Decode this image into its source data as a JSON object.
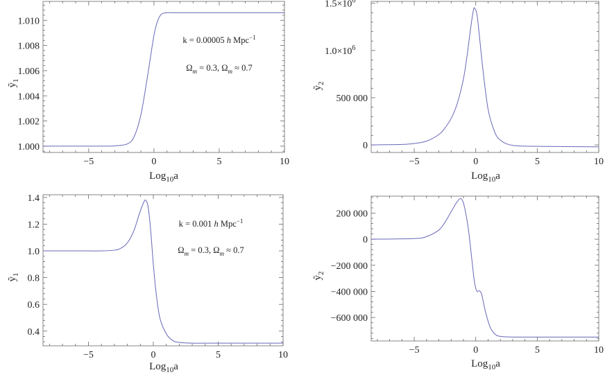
{
  "chart_data": [
    {
      "type": "line",
      "xlabel": "Log10a",
      "ylabel": "ỹ1",
      "xlim": [
        -8.5,
        10
      ],
      "ylim": [
        0.9995,
        1.0115
      ],
      "xticks": [
        -5,
        0,
        5,
        10
      ],
      "xtick_labels": [
        "−5",
        "0",
        "5",
        "10"
      ],
      "yticks": [
        1.0,
        1.002,
        1.004,
        1.006,
        1.008,
        1.01
      ],
      "ytick_labels": [
        "1.000",
        "1.002",
        "1.004",
        "1.006",
        "1.008",
        "1.010"
      ],
      "annotations": [
        "k = 0.00005 h Mpc⁻¹",
        "Ωm = 0.3, Ωm ≈ 0.7"
      ],
      "grid": false,
      "series": [
        {
          "color": "#6666b8",
          "x": [
            -8.5,
            -6,
            -4,
            -3,
            -2,
            -1.5,
            -1,
            -0.5,
            0,
            0.3,
            0.6,
            1,
            1.5,
            2,
            3,
            5,
            10
          ],
          "y": [
            1.0,
            1.0,
            1.0,
            1.00002,
            1.0002,
            1.0008,
            1.0025,
            1.0055,
            1.0088,
            1.01,
            1.0105,
            1.0106,
            1.0106,
            1.0106,
            1.0106,
            1.0106,
            1.0106
          ]
        }
      ]
    },
    {
      "type": "line",
      "xlabel": "Log10a",
      "ylabel": "ỹ2",
      "xlim": [
        -8.5,
        10
      ],
      "ylim": [
        -80000,
        1520000
      ],
      "xticks": [
        -5,
        0,
        5,
        10
      ],
      "xtick_labels": [
        "−5",
        "0",
        "5",
        "10"
      ],
      "yticks": [
        0,
        500000,
        1000000,
        1500000
      ],
      "ytick_labels": [
        "0",
        "500 000",
        "1.0×10",
        "1.5×10"
      ],
      "ytick_exponents": [
        "",
        "",
        "6",
        "6"
      ],
      "grid": false,
      "series": [
        {
          "color": "#6666b8",
          "x": [
            -8.5,
            -6,
            -5,
            -4,
            -3,
            -2.5,
            -2,
            -1.5,
            -1,
            -0.7,
            -0.4,
            -0.2,
            -0.1,
            0.1,
            0.3,
            0.6,
            1,
            1.5,
            2,
            3,
            5,
            10
          ],
          "y": [
            0,
            5000,
            15000,
            40000,
            110000,
            180000,
            280000,
            440000,
            700000,
            950000,
            1250000,
            1420000,
            1450000,
            1380000,
            1150000,
            780000,
            380000,
            150000,
            50000,
            -5000,
            -15000,
            -20000
          ]
        }
      ]
    },
    {
      "type": "line",
      "xlabel": "Log10a",
      "ylabel": "ỹ1",
      "xlim": [
        -8.5,
        10
      ],
      "ylim": [
        0.29,
        1.42
      ],
      "xticks": [
        -5,
        0,
        5,
        10
      ],
      "xtick_labels": [
        "−5",
        "0",
        "5",
        "10"
      ],
      "yticks": [
        0.4,
        0.6,
        0.8,
        1.0,
        1.2,
        1.4
      ],
      "ytick_labels": [
        "0.4",
        "0.6",
        "0.8",
        "1.0",
        "1.2",
        "1.4"
      ],
      "annotations": [
        "k = 0.001 h Mpc⁻¹",
        "Ωm = 0.3, Ωm ≈ 0.7"
      ],
      "grid": false,
      "series": [
        {
          "color": "#6666b8",
          "x": [
            -8.5,
            -5,
            -4,
            -3,
            -2.5,
            -2,
            -1.5,
            -1.1,
            -0.8,
            -0.6,
            -0.4,
            -0.2,
            0,
            0.2,
            0.5,
            1,
            1.5,
            2,
            3,
            5,
            10
          ],
          "y": [
            1.0,
            1.0,
            1.0,
            1.005,
            1.02,
            1.06,
            1.15,
            1.27,
            1.35,
            1.38,
            1.33,
            1.15,
            0.9,
            0.7,
            0.5,
            0.38,
            0.33,
            0.315,
            0.31,
            0.31,
            0.31
          ]
        }
      ]
    },
    {
      "type": "line",
      "xlabel": "Log10a",
      "ylabel": "ỹ2",
      "xlim": [
        -8.5,
        10
      ],
      "ylim": [
        -780000,
        330000
      ],
      "xticks": [
        -5,
        0,
        5,
        10
      ],
      "xtick_labels": [
        "−5",
        "0",
        "5",
        "10"
      ],
      "yticks": [
        200000,
        0,
        -200000,
        -400000,
        -600000
      ],
      "ytick_labels": [
        "200 000",
        "0",
        "−200 000",
        "−400 000",
        "−600 000"
      ],
      "grid": false,
      "series": [
        {
          "color": "#6666b8",
          "x": [
            -8.5,
            -5,
            -4,
            -3,
            -2.5,
            -2,
            -1.6,
            -1.3,
            -1.1,
            -0.9,
            -0.6,
            -0.3,
            -0.1,
            0.1,
            0.3,
            0.5,
            0.8,
            1.2,
            1.6,
            2,
            3,
            5,
            10
          ],
          "y": [
            0,
            5000,
            20000,
            70000,
            130000,
            210000,
            275000,
            310000,
            300000,
            240000,
            80000,
            -170000,
            -330000,
            -400000,
            -395000,
            -430000,
            -560000,
            -680000,
            -730000,
            -745000,
            -750000,
            -750000,
            -750000
          ]
        }
      ]
    }
  ]
}
